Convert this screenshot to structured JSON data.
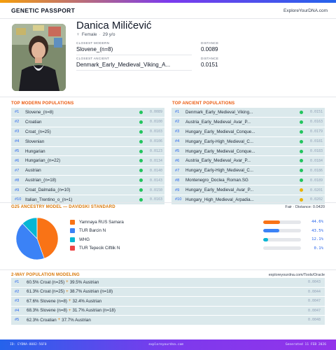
{
  "header": {
    "title": "GENETIC PASSPORT",
    "brand": "ExploreYourDNA.com"
  },
  "profile": {
    "name": "Danica Miličević",
    "sex": "Female",
    "age": "29 y/o",
    "sex_icon": "venus-icon",
    "closest_modern_label": "CLOSEST MODERN",
    "closest_modern": "Slovene_(n=8)",
    "closest_modern_distance_label": "DISTANCE",
    "closest_modern_distance": "0.0089",
    "closest_ancient_label": "CLOSEST ANCIENT",
    "closest_ancient": "Denmark_Early_Medieval_Viking_A...",
    "closest_ancient_distance_label": "DISTANCE",
    "closest_ancient_distance": "0.0151"
  },
  "modern": {
    "title": "TOP MODERN POPULATIONS",
    "rows": [
      {
        "num": "#1",
        "name": "Slovene_(n=8)",
        "dist": "0.0089",
        "color": "#22c55e"
      },
      {
        "num": "#2",
        "name": "Croatian",
        "dist": "0.0100",
        "color": "#22c55e"
      },
      {
        "num": "#3",
        "name": "Croat_(n=25)",
        "dist": "0.0103",
        "color": "#22c55e"
      },
      {
        "num": "#4",
        "name": "Slovenian",
        "dist": "0.0106",
        "color": "#22c55e"
      },
      {
        "num": "#5",
        "name": "Hungarian",
        "dist": "0.0123",
        "color": "#22c55e"
      },
      {
        "num": "#6",
        "name": "Hungarian_(n=22)",
        "dist": "0.0134",
        "color": "#22c55e"
      },
      {
        "num": "#7",
        "name": "Austrian",
        "dist": "0.0140",
        "color": "#22c55e"
      },
      {
        "num": "#8",
        "name": "Austrian_(n=18)",
        "dist": "0.0143",
        "color": "#22c55e"
      },
      {
        "num": "#9",
        "name": "Croat_Dalmatia_(n=10)",
        "dist": "0.0150",
        "color": "#22c55e"
      },
      {
        "num": "#10",
        "name": "Italian_Trentino_o_(n=1)",
        "dist": "0.0163",
        "color": "#22c55e"
      }
    ]
  },
  "ancient": {
    "title": "TOP ANCIENT POPULATIONS",
    "rows": [
      {
        "num": "#1",
        "name": "Denmark_Early_Medieval_Viking...",
        "dist": "0.0151",
        "color": "#22c55e"
      },
      {
        "num": "#2",
        "name": "Austria_Early_Medieval_Avar_P...",
        "dist": "0.0163",
        "color": "#22c55e"
      },
      {
        "num": "#3",
        "name": "Hungary_Early_Medieval_Conque...",
        "dist": "0.0179",
        "color": "#22c55e"
      },
      {
        "num": "#4",
        "name": "Hungary_Early-High_Medieval_C...",
        "dist": "0.0181",
        "color": "#22c55e"
      },
      {
        "num": "#5",
        "name": "Hungary_Early_Medieval_Conque...",
        "dist": "0.0183",
        "color": "#22c55e"
      },
      {
        "num": "#6",
        "name": "Austria_Early_Medieval_Avar_P...",
        "dist": "0.0184",
        "color": "#22c55e"
      },
      {
        "num": "#7",
        "name": "Hungary_Early-High_Medieval_C...",
        "dist": "0.0186",
        "color": "#22c55e"
      },
      {
        "num": "#8",
        "name": "Montenegro_Doclea_Roman.SG",
        "dist": "0.0189",
        "color": "#22c55e"
      },
      {
        "num": "#9",
        "name": "Hungary_Early_Medieval_Avar_P...",
        "dist": "0.0201",
        "color": "#eab308"
      },
      {
        "num": "#10",
        "name": "Hungary_High_Medieval_Arpadia...",
        "dist": "0.0202",
        "color": "#eab308"
      }
    ]
  },
  "g25": {
    "title": "G25 ANCESTRY MODEL — DAVIDSKI STANDARD",
    "fit": "Fair · Distance: 0.0420",
    "components": [
      {
        "name": "Yamnaya RUS Samara",
        "pct": "44.6%",
        "value": 44.6,
        "color": "#f97316"
      },
      {
        "name": "TUR Barcin N",
        "pct": "43.5%",
        "value": 43.5,
        "color": "#3b82f6"
      },
      {
        "name": "WHG",
        "pct": "12.1%",
        "value": 12.1,
        "color": "#06b6d4"
      },
      {
        "name": "TUR Tepecik Ciftlik N",
        "pct": "0.1%",
        "value": 0.1,
        "color": "#ef4444"
      }
    ]
  },
  "models": {
    "title": "2-WAY POPULATION MODELING",
    "link": "exploreyourdna.com/Tools/Oracle",
    "rows": [
      {
        "num": "#1",
        "a": "60.5% Croat (n=25)",
        "b": "39.5% Austrian",
        "dist": "0.0043"
      },
      {
        "num": "#2",
        "a": "61.3% Croat (n=25)",
        "b": "38.7% Austrian (n=18)",
        "dist": "0.0044"
      },
      {
        "num": "#3",
        "a": "67.6% Slovene (n=8)",
        "b": "32.4% Austrian",
        "dist": "0.0047"
      },
      {
        "num": "#4",
        "a": "68.3% Slovene (n=8)",
        "b": "31.7% Austrian (n=18)",
        "dist": "0.0047"
      },
      {
        "num": "#5",
        "a": "62.3% Croatian",
        "b": "37.7% Austrian",
        "dist": "0.0048"
      }
    ]
  },
  "footer": {
    "id": "ID: EYDNA-8082-56F0",
    "site": "exploreyourdna.com",
    "generated": "Generated 11 FEB 2026"
  }
}
